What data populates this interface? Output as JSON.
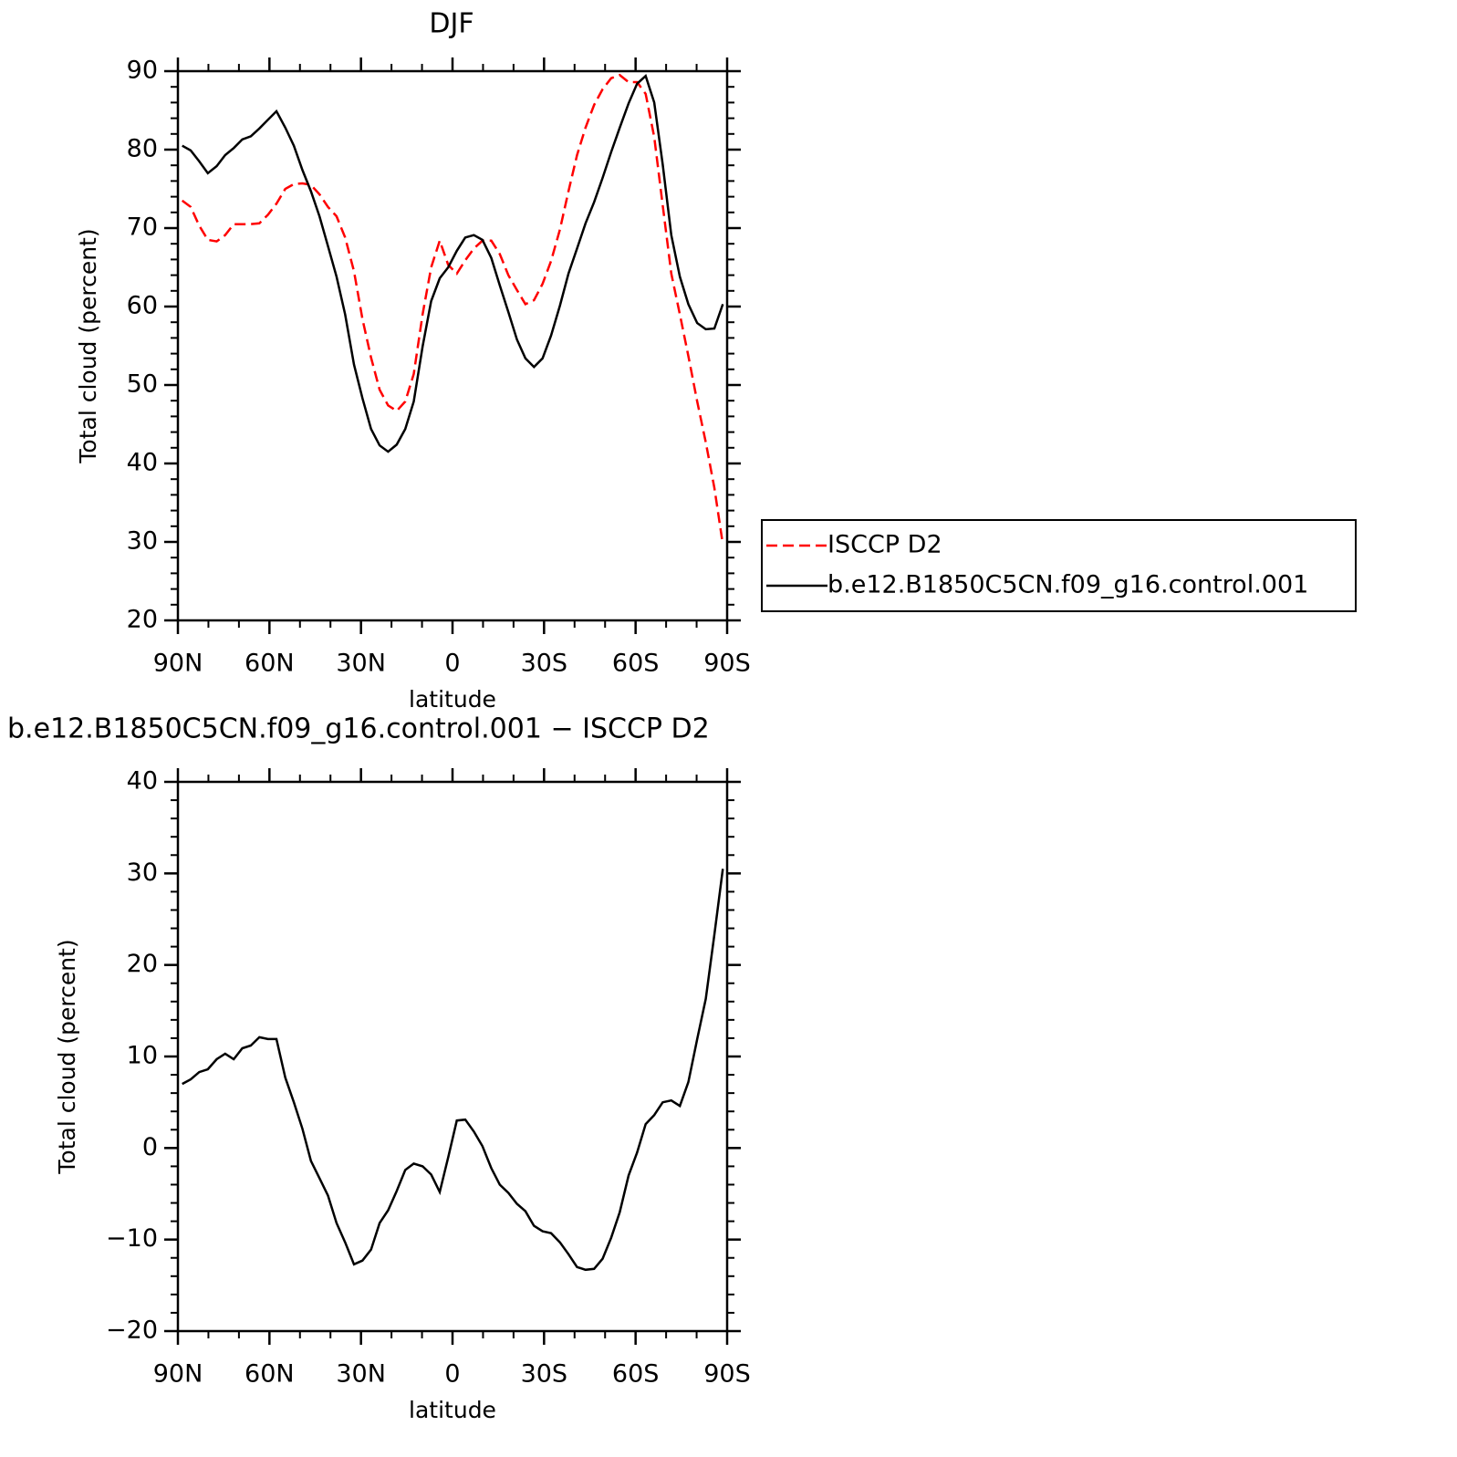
{
  "chart_data": [
    {
      "type": "line",
      "title": "DJF",
      "xlabel": "latitude",
      "ylabel": "Total cloud (percent)",
      "x": [
        88.6,
        85.8,
        83.0,
        80.2,
        77.3,
        74.5,
        71.7,
        68.9,
        66.1,
        63.3,
        60.5,
        57.7,
        54.8,
        52.0,
        49.2,
        46.4,
        43.6,
        40.8,
        38.0,
        35.2,
        32.3,
        29.5,
        26.7,
        23.9,
        21.1,
        18.3,
        15.5,
        12.7,
        9.8,
        7.0,
        4.2,
        1.4,
        -1.4,
        -4.2,
        -7.0,
        -9.8,
        -12.7,
        -15.5,
        -18.3,
        -21.1,
        -23.9,
        -26.7,
        -29.5,
        -32.3,
        -35.2,
        -38.0,
        -40.8,
        -43.6,
        -46.4,
        -49.2,
        -52.0,
        -54.8,
        -57.7,
        -60.5,
        -63.3,
        -66.1,
        -68.9,
        -71.7,
        -74.5,
        -77.3,
        -80.2,
        -83.0,
        -85.8,
        -88.6
      ],
      "series": [
        {
          "name": "ISCCP D2",
          "color": "#ff0000",
          "dash": "dashed",
          "values": [
            73.5,
            72.7,
            70.3,
            68.5,
            68.3,
            69.1,
            70.5,
            70.5,
            70.5,
            70.6,
            71.7,
            73.1,
            75,
            75.6,
            75.7,
            75.5,
            74.3,
            72.7,
            71.5,
            68.8,
            64.5,
            58.4,
            53.5,
            49.4,
            47.4,
            46.7,
            47.9,
            51.4,
            59,
            65,
            68.4,
            65.3,
            64.2,
            65.9,
            67.4,
            68.4,
            68.4,
            66.7,
            64,
            62.1,
            60.3,
            60.8,
            62.9,
            65.8,
            69.8,
            74.7,
            79.3,
            82.8,
            85.7,
            87.7,
            89.1,
            89.5,
            88.6,
            88.6,
            87.1,
            81.6,
            72.9,
            64.2,
            59,
            53.7,
            47.9,
            42.7,
            36.9,
            29.7
          ]
        },
        {
          "name": "b.e12.B1850C5CN.f09_g16.control.001",
          "color": "#000000",
          "dash": "solid",
          "values": [
            80.5,
            79.9,
            78.5,
            77,
            77.9,
            79.3,
            80.2,
            81.3,
            81.7,
            82.7,
            83.8,
            84.9,
            82.8,
            80.5,
            77.4,
            74.7,
            71.5,
            67.7,
            63.8,
            59,
            52.6,
            48.3,
            44.4,
            42.3,
            41.5,
            42.4,
            44.4,
            47.9,
            54.9,
            60.7,
            63.6,
            65,
            67.1,
            68.8,
            69.1,
            68.5,
            66.2,
            62.7,
            59.3,
            55.8,
            53.4,
            52.3,
            53.4,
            56.3,
            60.1,
            64.2,
            67.4,
            70.6,
            73.3,
            76.4,
            79.7,
            82.8,
            85.9,
            88.4,
            89.4,
            86,
            78.1,
            69.1,
            63.8,
            60.3,
            57.9,
            57.1,
            57.2,
            60.3
          ]
        }
      ],
      "xlim": [
        90,
        -90
      ],
      "xticks": [
        {
          "value": 90,
          "label": "90N"
        },
        {
          "value": 60,
          "label": "60N"
        },
        {
          "value": 30,
          "label": "30N"
        },
        0,
        {
          "value": -30,
          "label": "30S"
        },
        {
          "value": -60,
          "label": "60S"
        },
        {
          "value": -90,
          "label": "90S"
        }
      ],
      "ylim": [
        20,
        90
      ],
      "yticks": [
        20,
        30,
        40,
        50,
        60,
        70,
        80,
        90
      ],
      "legend": "right"
    },
    {
      "type": "line",
      "title": "b.e12.B1850C5CN.f09_g16.control.001 − ISCCP D2",
      "xlabel": "latitude",
      "ylabel": "Total cloud (percent)",
      "x": [
        88.6,
        85.8,
        83.0,
        80.2,
        77.3,
        74.5,
        71.7,
        68.9,
        66.1,
        63.3,
        60.5,
        57.7,
        54.8,
        52.0,
        49.2,
        46.4,
        43.6,
        40.8,
        38.0,
        35.2,
        32.3,
        29.5,
        26.7,
        23.9,
        21.1,
        18.3,
        15.5,
        12.7,
        9.8,
        7.0,
        4.2,
        1.4,
        -1.4,
        -4.2,
        -7.0,
        -9.8,
        -12.7,
        -15.5,
        -18.3,
        -21.1,
        -23.9,
        -26.7,
        -29.5,
        -32.3,
        -35.2,
        -38.0,
        -40.8,
        -43.6,
        -46.4,
        -49.2,
        -52.0,
        -54.8,
        -57.7,
        -60.5,
        -63.3,
        -66.1,
        -68.9,
        -71.7,
        -74.5,
        -77.3,
        -80.2,
        -83.0,
        -85.8,
        -88.6
      ],
      "color": "#000000",
      "values": [
        7,
        7.5,
        8.3,
        8.6,
        9.7,
        10.3,
        9.7,
        10.9,
        11.2,
        12.1,
        11.9,
        11.9,
        7.7,
        5,
        2.1,
        -1.4,
        -3.3,
        -5.2,
        -8.2,
        -10.3,
        -12.7,
        -12.3,
        -11.1,
        -8.2,
        -6.8,
        -4.7,
        -2.4,
        -1.7,
        -2,
        -2.9,
        -4.8,
        -1,
        3,
        3.1,
        1.8,
        0.2,
        -2.2,
        -4,
        -4.9,
        -6.1,
        -6.9,
        -8.5,
        -9.1,
        -9.3,
        -10.3,
        -11.6,
        -13,
        -13.3,
        -13.2,
        -12.1,
        -9.8,
        -7,
        -3,
        -0.5,
        2.6,
        3.6,
        5,
        5.2,
        4.6,
        7.2,
        11.9,
        16.3,
        23.3,
        30.5
      ],
      "xlim": [
        90,
        -90
      ],
      "xticks": [
        {
          "value": 90,
          "label": "90N"
        },
        {
          "value": 60,
          "label": "60N"
        },
        {
          "value": 30,
          "label": "30N"
        },
        0,
        {
          "value": -30,
          "label": "30S"
        },
        {
          "value": -60,
          "label": "60S"
        },
        {
          "value": -90,
          "label": "90S"
        }
      ],
      "ylim": [
        -20,
        40
      ],
      "yticks": [
        {
          "value": -20,
          "label": "−20"
        },
        {
          "value": -10,
          "label": "−10"
        },
        0,
        10,
        20,
        30,
        40
      ]
    }
  ]
}
